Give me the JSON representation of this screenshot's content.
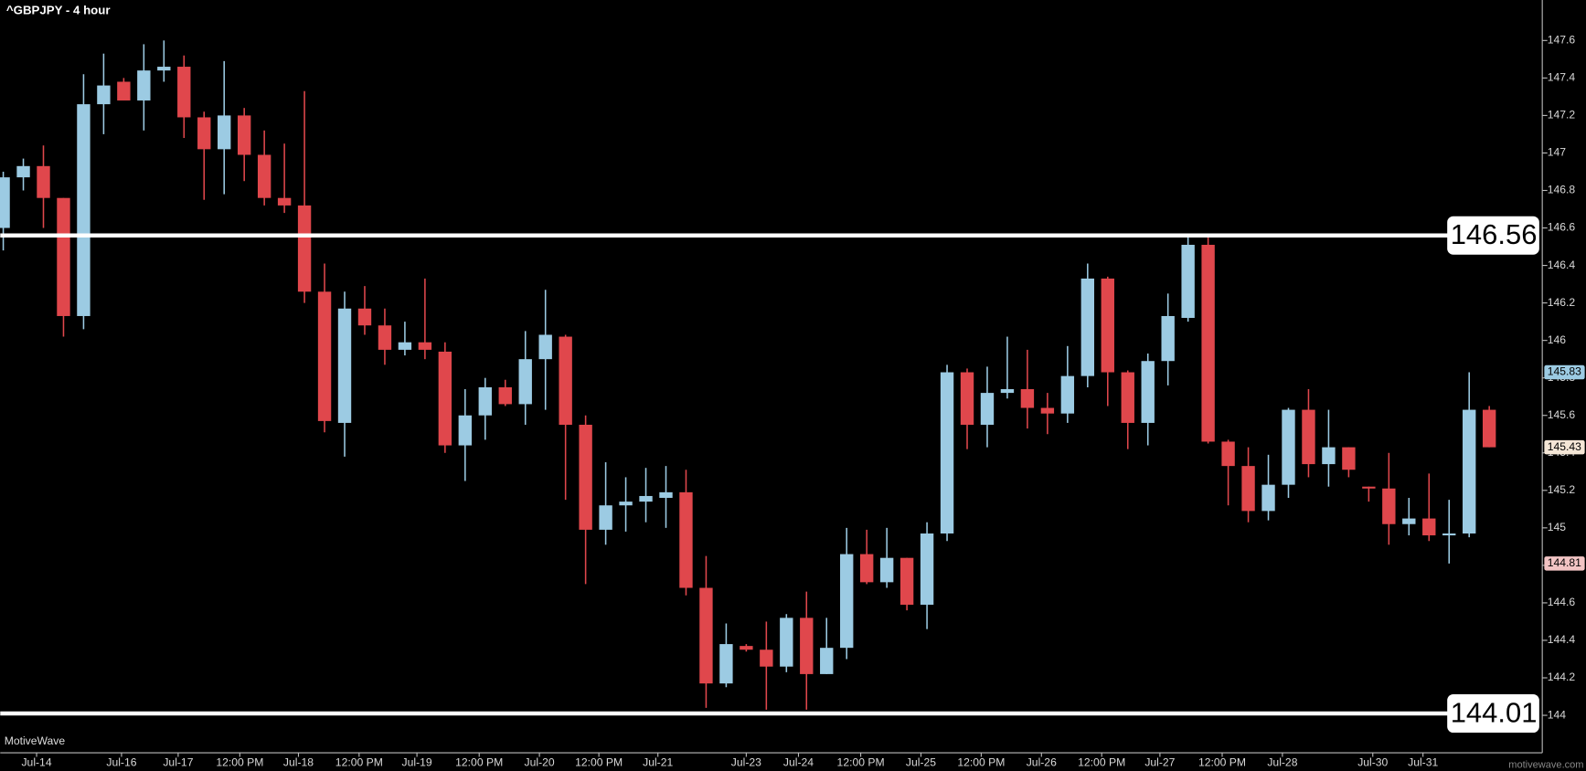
{
  "chart_data": {
    "type": "candlestick",
    "title": "^GBPJPY - 4 hour",
    "watermark": "MotiveWave",
    "site": "motivewave.com",
    "up_color": "#9ccbe3",
    "down_color": "#e0474c",
    "open": [
      146.6,
      146.87,
      146.93,
      146.76,
      146.13,
      147.26,
      147.38,
      147.28,
      147.44,
      147.46,
      147.19,
      147.02,
      147.2,
      146.99,
      146.76,
      146.72,
      146.26,
      145.56,
      146.17,
      146.08,
      145.95,
      145.99,
      145.94,
      145.44,
      145.6,
      145.75,
      145.66,
      145.9,
      146.02,
      145.55,
      144.99,
      145.12,
      145.14,
      145.16,
      145.19,
      144.68,
      144.17,
      144.37,
      144.35,
      144.26,
      144.52,
      144.22,
      144.36,
      144.86,
      144.71,
      144.84,
      144.59,
      144.97,
      145.83,
      145.55,
      145.72,
      145.74,
      145.64,
      145.61,
      145.81,
      146.33,
      145.83,
      145.56,
      145.89,
      146.12,
      146.51,
      145.46,
      145.33,
      145.09,
      145.23,
      145.63,
      145.34,
      145.43,
      145.22,
      145.21,
      145.02,
      145.05,
      144.96,
      144.97,
      145.63
    ],
    "high": [
      146.9,
      146.97,
      147.04,
      146.76,
      147.42,
      147.53,
      147.4,
      147.58,
      147.6,
      147.52,
      147.22,
      147.49,
      147.24,
      147.12,
      147.05,
      147.33,
      146.41,
      146.26,
      146.29,
      146.17,
      146.1,
      146.33,
      145.99,
      145.74,
      145.8,
      145.79,
      146.05,
      146.27,
      146.03,
      145.6,
      145.35,
      145.27,
      145.32,
      145.33,
      145.31,
      144.85,
      144.49,
      144.38,
      144.5,
      144.54,
      144.66,
      144.52,
      145.0,
      144.99,
      145.0,
      144.84,
      145.03,
      145.87,
      145.85,
      145.86,
      146.02,
      145.95,
      145.72,
      145.97,
      146.41,
      146.34,
      145.84,
      145.93,
      146.25,
      146.56,
      146.55,
      145.47,
      145.43,
      145.39,
      145.64,
      145.74,
      145.63,
      145.43,
      145.22,
      145.4,
      145.16,
      145.29,
      145.15,
      145.83,
      145.65
    ],
    "low": [
      146.48,
      146.8,
      146.6,
      146.02,
      146.06,
      147.1,
      147.28,
      147.12,
      147.38,
      147.08,
      146.75,
      146.78,
      146.85,
      146.72,
      146.68,
      146.2,
      145.51,
      145.38,
      146.03,
      145.87,
      145.92,
      145.9,
      145.4,
      145.25,
      145.47,
      145.65,
      145.55,
      145.63,
      145.15,
      144.7,
      144.91,
      144.98,
      145.03,
      145.0,
      144.64,
      144.04,
      144.15,
      144.34,
      144.03,
      144.23,
      144.03,
      144.22,
      144.3,
      144.7,
      144.68,
      144.56,
      144.46,
      144.93,
      145.42,
      145.43,
      145.69,
      145.53,
      145.5,
      145.56,
      145.75,
      145.65,
      145.42,
      145.44,
      145.76,
      146.1,
      145.45,
      145.12,
      145.03,
      145.04,
      145.16,
      145.27,
      145.22,
      145.27,
      145.14,
      144.91,
      144.96,
      144.93,
      144.81,
      144.95,
      145.43
    ],
    "close": [
      146.87,
      146.93,
      146.76,
      146.13,
      147.26,
      147.36,
      147.28,
      147.44,
      147.46,
      147.19,
      147.02,
      147.2,
      146.99,
      146.76,
      146.72,
      146.26,
      145.57,
      146.17,
      146.08,
      145.95,
      145.99,
      145.95,
      145.44,
      145.6,
      145.75,
      145.66,
      145.9,
      146.03,
      145.55,
      144.99,
      145.12,
      145.14,
      145.17,
      145.19,
      144.68,
      144.17,
      144.38,
      144.35,
      144.26,
      144.52,
      144.22,
      144.36,
      144.86,
      144.71,
      144.84,
      144.59,
      144.97,
      145.83,
      145.55,
      145.72,
      145.74,
      145.64,
      145.61,
      145.81,
      146.33,
      145.83,
      145.56,
      145.89,
      146.13,
      146.51,
      145.46,
      145.33,
      145.09,
      145.23,
      145.63,
      145.34,
      145.43,
      145.31,
      145.21,
      145.02,
      145.05,
      144.96,
      144.97,
      145.63,
      145.43
    ],
    "xlim": [
      -0.15,
      76.64
    ],
    "xticks": [
      {
        "value": 1.66,
        "label": "Jul-14"
      },
      {
        "value": 5.89,
        "label": "Jul-16"
      },
      {
        "value": 8.71,
        "label": "Jul-17"
      },
      {
        "value": 11.78,
        "label": "12:00 PM"
      },
      {
        "value": 14.7,
        "label": "Jul-18"
      },
      {
        "value": 17.72,
        "label": "12:00 PM"
      },
      {
        "value": 20.6,
        "label": "Jul-19"
      },
      {
        "value": 23.7,
        "label": "12:00 PM"
      },
      {
        "value": 26.7,
        "label": "Jul-20"
      },
      {
        "value": 29.66,
        "label": "12:00 PM"
      },
      {
        "value": 32.6,
        "label": "Jul-21"
      },
      {
        "value": 37.0,
        "label": "Jul-23"
      },
      {
        "value": 39.6,
        "label": "Jul-24"
      },
      {
        "value": 42.7,
        "label": "12:00 PM"
      },
      {
        "value": 45.7,
        "label": "Jul-25"
      },
      {
        "value": 48.7,
        "label": "12:00 PM"
      },
      {
        "value": 51.7,
        "label": "Jul-26"
      },
      {
        "value": 54.7,
        "label": "12:00 PM"
      },
      {
        "value": 57.6,
        "label": "Jul-27"
      },
      {
        "value": 60.7,
        "label": "12:00 PM"
      },
      {
        "value": 63.7,
        "label": "Jul-28"
      },
      {
        "value": 68.2,
        "label": "Jul-30"
      },
      {
        "value": 70.7,
        "label": "Jul-31"
      }
    ],
    "ylim": [
      143.8,
      147.816
    ],
    "yticks": [
      144,
      144.2,
      144.4,
      144.6,
      144.8,
      145,
      145.2,
      145.4,
      145.6,
      145.8,
      146,
      146.2,
      146.4,
      146.6,
      146.8,
      147,
      147.2,
      147.4,
      147.6
    ],
    "levels": [
      146.56,
      144.01
    ],
    "price_tags": [
      145.83,
      145.43,
      144.81
    ],
    "price_tag_colors": [
      "#9ccbe3",
      "#f4e6d6",
      "#f2c4c4"
    ]
  }
}
